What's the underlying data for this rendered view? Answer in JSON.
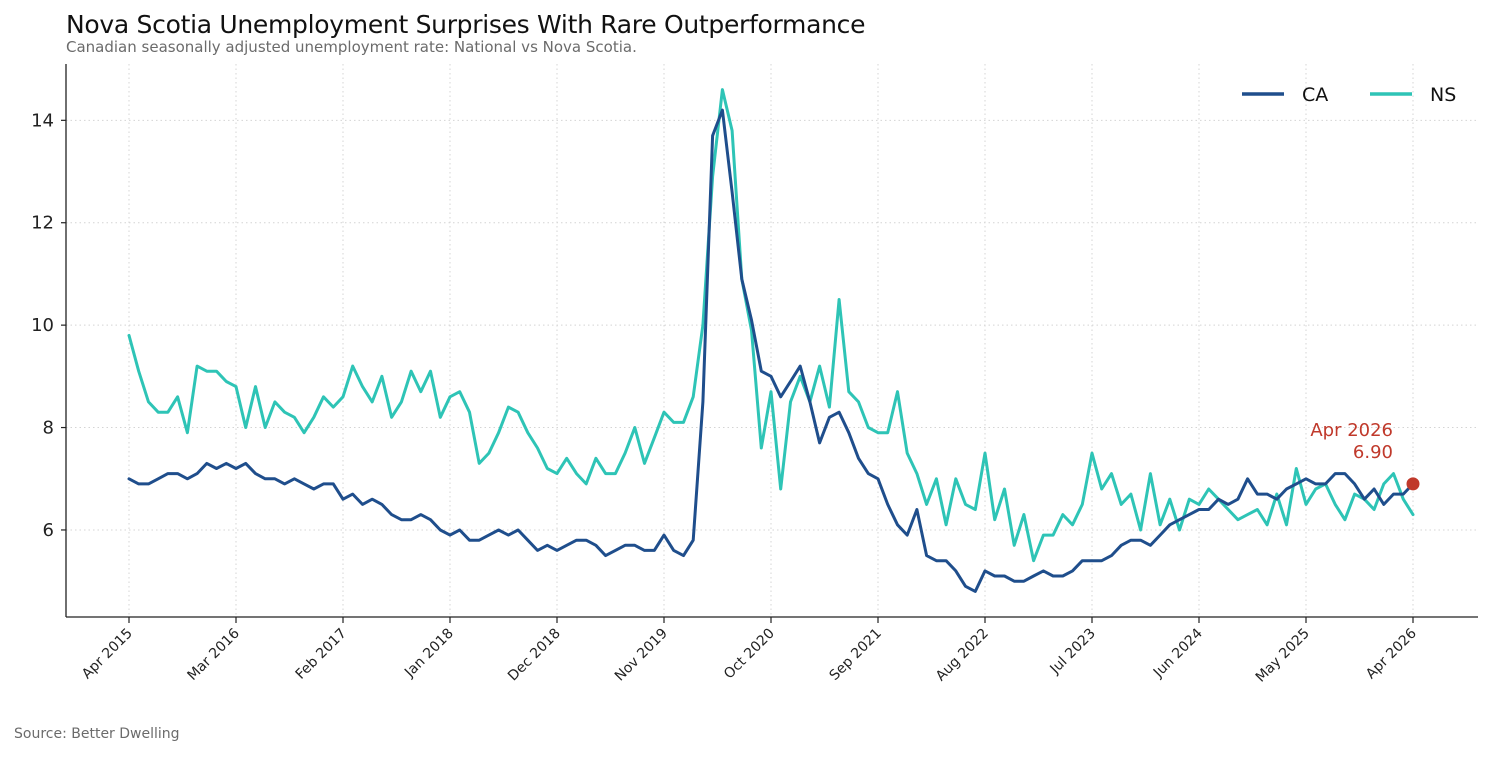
{
  "title": "Nova Scotia Unemployment Surprises With Rare Outperformance",
  "subtitle": "Canadian seasonally adjusted unemployment rate: National vs Nova Scotia.",
  "source": "Source: Better Dwelling",
  "chart_data": {
    "type": "line",
    "title": "Nova Scotia Unemployment Surprises With Rare Outperformance",
    "subtitle": "Canadian seasonally adjusted unemployment rate: National vs Nova Scotia.",
    "xlabel": "",
    "ylabel": "",
    "x_start": "Apr 2015",
    "x_end": "Apr 2026",
    "x_ticks": [
      "Apr 2015",
      "Mar 2016",
      "Feb 2017",
      "Jan 2018",
      "Dec 2018",
      "Nov 2019",
      "Oct 2020",
      "Sep 2021",
      "Aug 2022",
      "Jul 2023",
      "Jun 2024",
      "May 2025",
      "Apr 2026"
    ],
    "y_ticks": [
      6,
      8,
      10,
      12,
      14
    ],
    "ylim": [
      4.3,
      15.1
    ],
    "grid": true,
    "legend_position": "top-right",
    "series": [
      {
        "name": "CA",
        "color": "#1f4e8c",
        "values": [
          7.0,
          6.9,
          6.9,
          7.0,
          7.1,
          7.1,
          7.0,
          7.1,
          7.3,
          7.2,
          7.3,
          7.2,
          7.3,
          7.1,
          7.0,
          7.0,
          6.9,
          7.0,
          6.9,
          6.8,
          6.9,
          6.9,
          6.6,
          6.7,
          6.5,
          6.6,
          6.5,
          6.3,
          6.2,
          6.2,
          6.3,
          6.2,
          6.0,
          5.9,
          6.0,
          5.8,
          5.8,
          5.9,
          6.0,
          5.9,
          6.0,
          5.8,
          5.6,
          5.7,
          5.6,
          5.7,
          5.8,
          5.8,
          5.7,
          5.5,
          5.6,
          5.7,
          5.7,
          5.6,
          5.6,
          5.9,
          5.6,
          5.5,
          5.8,
          8.5,
          13.7,
          14.2,
          12.6,
          10.9,
          10.1,
          9.1,
          9.0,
          8.6,
          8.9,
          9.2,
          8.5,
          7.7,
          8.2,
          8.3,
          7.9,
          7.4,
          7.1,
          7.0,
          6.5,
          6.1,
          5.9,
          6.4,
          5.5,
          5.4,
          5.4,
          5.2,
          4.9,
          4.8,
          5.2,
          5.1,
          5.1,
          5.0,
          5.0,
          5.1,
          5.2,
          5.1,
          5.1,
          5.2,
          5.4,
          5.4,
          5.4,
          5.5,
          5.7,
          5.8,
          5.8,
          5.7,
          5.9,
          6.1,
          6.2,
          6.3,
          6.4,
          6.4,
          6.6,
          6.5,
          6.6,
          7.0,
          6.7,
          6.7,
          6.6,
          6.8,
          6.9,
          7.0,
          6.9,
          6.9,
          7.1,
          7.1,
          6.9,
          6.6,
          6.8,
          6.5,
          6.7,
          6.7,
          6.9
        ]
      },
      {
        "name": "NS",
        "color": "#2ec4b6",
        "values": [
          9.8,
          9.1,
          8.5,
          8.3,
          8.3,
          8.6,
          7.9,
          9.2,
          9.1,
          9.1,
          8.9,
          8.8,
          8.0,
          8.8,
          8.0,
          8.5,
          8.3,
          8.2,
          7.9,
          8.2,
          8.6,
          8.4,
          8.6,
          9.2,
          8.8,
          8.5,
          9.0,
          8.2,
          8.5,
          9.1,
          8.7,
          9.1,
          8.2,
          8.6,
          8.7,
          8.3,
          7.3,
          7.5,
          7.9,
          8.4,
          8.3,
          7.9,
          7.6,
          7.2,
          7.1,
          7.4,
          7.1,
          6.9,
          7.4,
          7.1,
          7.1,
          7.5,
          8.0,
          7.3,
          7.8,
          8.3,
          8.1,
          8.1,
          8.6,
          10.0,
          12.9,
          14.6,
          13.8,
          10.9,
          9.9,
          7.6,
          8.7,
          6.8,
          8.5,
          9.0,
          8.5,
          9.2,
          8.4,
          10.5,
          8.7,
          8.5,
          8.0,
          7.9,
          7.9,
          8.7,
          7.5,
          7.1,
          6.5,
          7.0,
          6.1,
          7.0,
          6.5,
          6.4,
          7.5,
          6.2,
          6.8,
          5.7,
          6.3,
          5.4,
          5.9,
          5.9,
          6.3,
          6.1,
          6.5,
          7.5,
          6.8,
          7.1,
          6.5,
          6.7,
          6.0,
          7.1,
          6.1,
          6.6,
          6.0,
          6.6,
          6.5,
          6.8,
          6.6,
          6.4,
          6.2,
          6.3,
          6.4,
          6.1,
          6.7,
          6.1,
          7.2,
          6.5,
          6.8,
          6.9,
          6.5,
          6.2,
          6.7,
          6.6,
          6.4,
          6.9,
          7.1,
          6.6,
          6.3
        ]
      }
    ],
    "annotation": {
      "series": "CA",
      "x": "Apr 2026",
      "label": "Apr 2026",
      "value_label": "6.90",
      "color": "#c0392b"
    }
  }
}
